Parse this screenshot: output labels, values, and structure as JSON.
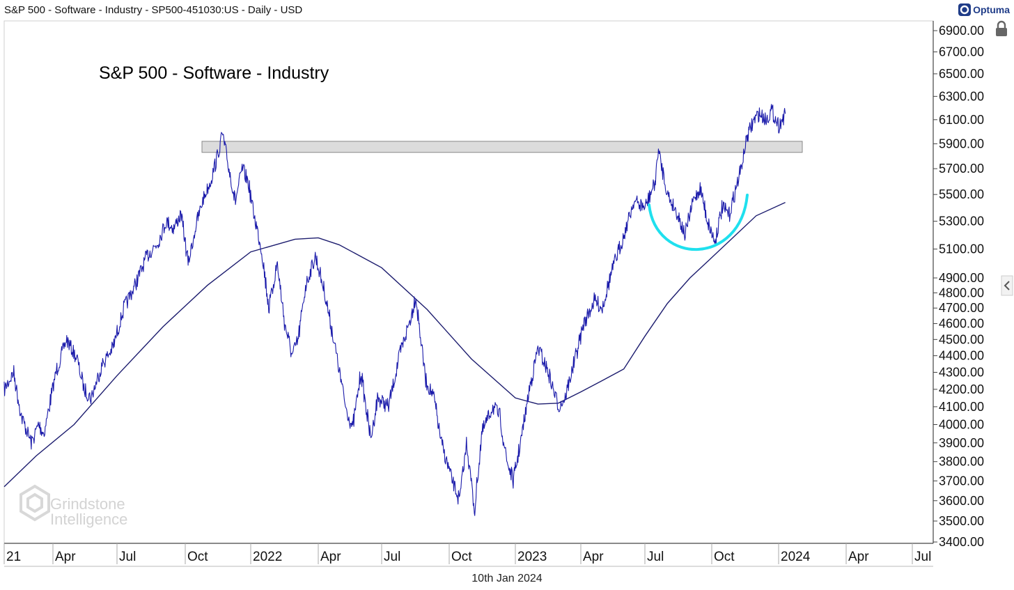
{
  "header": {
    "title": "S&P 500 - Software - Industry - SP500-451030:US - Daily - USD",
    "logo_text": "Optuma"
  },
  "footer": {
    "date": "10th Jan 2024"
  },
  "watermark": {
    "line1": "Grindstone",
    "line2": "Intelligence"
  },
  "colors": {
    "price": "#1a1aaa",
    "moving_average": "#1c1c6e",
    "resistance_band": "#dcdcdc",
    "resistance_border": "#888888",
    "arc": "#1fe0ee",
    "axis": "#444444"
  },
  "chart_data": {
    "type": "line",
    "title": "S&P 500 - Software - Industry",
    "x_axis": {
      "tick_labels": [
        "21",
        "Apr",
        "Jul",
        "Oct",
        "2022",
        "Apr",
        "Jul",
        "Oct",
        "2023",
        "Apr",
        "Jul",
        "Oct",
        "2024",
        "Apr",
        "Jul"
      ],
      "tick_dates": [
        "2021-01-01",
        "2021-04-01",
        "2021-07-01",
        "2021-10-01",
        "2022-01-01",
        "2022-04-01",
        "2022-07-01",
        "2022-10-01",
        "2023-01-01",
        "2023-04-01",
        "2023-07-01",
        "2023-10-01",
        "2024-01-01",
        "2024-04-01",
        "2024-07-01"
      ]
    },
    "y_axis": {
      "scale": "log",
      "range": [
        3400,
        7000
      ],
      "tick_labels": [
        "6900.00",
        "6700.00",
        "6500.00",
        "6300.00",
        "6100.00",
        "5900.00",
        "5700.00",
        "5500.00",
        "5300.00",
        "5100.00",
        "4900.00",
        "4800.00",
        "4700.00",
        "4600.00",
        "4500.00",
        "4400.00",
        "4300.00",
        "4200.00",
        "4100.00",
        "4000.00",
        "3900.00",
        "3800.00",
        "3700.00",
        "3600.00",
        "3500.00",
        "3400.00"
      ],
      "tick_values": [
        6900,
        6700,
        6500,
        6300,
        6100,
        5900,
        5700,
        5500,
        5300,
        5100,
        4900,
        4800,
        4700,
        4600,
        4500,
        4400,
        4300,
        4200,
        4100,
        4000,
        3900,
        3800,
        3700,
        3600,
        3500,
        3400
      ]
    },
    "grid": false,
    "series": [
      {
        "values_kind": "price",
        "points": [
          [
            "2021-01-01",
            4200
          ],
          [
            "2021-01-18",
            4300
          ],
          [
            "2021-02-01",
            4050
          ],
          [
            "2021-02-20",
            3900
          ],
          [
            "2021-03-05",
            4000
          ],
          [
            "2021-03-15",
            3950
          ],
          [
            "2021-04-05",
            4300
          ],
          [
            "2021-04-20",
            4500
          ],
          [
            "2021-05-05",
            4380
          ],
          [
            "2021-05-15",
            4200
          ],
          [
            "2021-05-25",
            4150
          ],
          [
            "2021-06-10",
            4350
          ],
          [
            "2021-06-25",
            4450
          ],
          [
            "2021-07-10",
            4700
          ],
          [
            "2021-07-25",
            4850
          ],
          [
            "2021-08-10",
            5050
          ],
          [
            "2021-08-25",
            5150
          ],
          [
            "2021-09-05",
            5300
          ],
          [
            "2021-09-15",
            5250
          ],
          [
            "2021-09-25",
            5350
          ],
          [
            "2021-10-05",
            5000
          ],
          [
            "2021-10-15",
            5250
          ],
          [
            "2021-10-25",
            5450
          ],
          [
            "2021-11-05",
            5600
          ],
          [
            "2021-11-15",
            5800
          ],
          [
            "2021-11-22",
            5980
          ],
          [
            "2021-12-01",
            5700
          ],
          [
            "2021-12-10",
            5450
          ],
          [
            "2021-12-20",
            5700
          ],
          [
            "2021-12-28",
            5600
          ],
          [
            "2022-01-05",
            5350
          ],
          [
            "2022-01-15",
            5100
          ],
          [
            "2022-01-25",
            4700
          ],
          [
            "2022-02-05",
            5000
          ],
          [
            "2022-02-15",
            4600
          ],
          [
            "2022-02-25",
            4400
          ],
          [
            "2022-03-05",
            4500
          ],
          [
            "2022-03-15",
            4850
          ],
          [
            "2022-03-28",
            5050
          ],
          [
            "2022-04-10",
            4800
          ],
          [
            "2022-04-25",
            4450
          ],
          [
            "2022-05-10",
            4100
          ],
          [
            "2022-05-20",
            3980
          ],
          [
            "2022-06-01",
            4300
          ],
          [
            "2022-06-15",
            3920
          ],
          [
            "2022-06-25",
            4150
          ],
          [
            "2022-07-10",
            4100
          ],
          [
            "2022-07-25",
            4400
          ],
          [
            "2022-08-10",
            4650
          ],
          [
            "2022-08-16",
            4780
          ],
          [
            "2022-08-30",
            4250
          ],
          [
            "2022-09-10",
            4150
          ],
          [
            "2022-09-20",
            3900
          ],
          [
            "2022-10-05",
            3700
          ],
          [
            "2022-10-15",
            3600
          ],
          [
            "2022-10-25",
            3900
          ],
          [
            "2022-11-05",
            3550
          ],
          [
            "2022-11-15",
            3950
          ],
          [
            "2022-11-30",
            4100
          ],
          [
            "2022-12-10",
            4050
          ],
          [
            "2022-12-20",
            3800
          ],
          [
            "2022-12-29",
            3700
          ],
          [
            "2023-01-10",
            3950
          ],
          [
            "2023-01-20",
            4200
          ],
          [
            "2023-02-01",
            4450
          ],
          [
            "2023-02-15",
            4300
          ],
          [
            "2023-03-01",
            4100
          ],
          [
            "2023-03-10",
            4150
          ],
          [
            "2023-03-25",
            4400
          ],
          [
            "2023-04-05",
            4600
          ],
          [
            "2023-04-20",
            4750
          ],
          [
            "2023-05-01",
            4700
          ],
          [
            "2023-05-15",
            4950
          ],
          [
            "2023-06-01",
            5200
          ],
          [
            "2023-06-15",
            5450
          ],
          [
            "2023-07-01",
            5400
          ],
          [
            "2023-07-15",
            5600
          ],
          [
            "2023-07-19",
            5850
          ],
          [
            "2023-08-01",
            5500
          ],
          [
            "2023-08-15",
            5350
          ],
          [
            "2023-08-25",
            5200
          ],
          [
            "2023-09-05",
            5450
          ],
          [
            "2023-09-15",
            5550
          ],
          [
            "2023-09-25",
            5300
          ],
          [
            "2023-10-05",
            5150
          ],
          [
            "2023-10-15",
            5400
          ],
          [
            "2023-10-25",
            5350
          ],
          [
            "2023-11-01",
            5500
          ],
          [
            "2023-11-10",
            5700
          ],
          [
            "2023-11-18",
            5950
          ],
          [
            "2023-11-28",
            6100
          ],
          [
            "2023-12-05",
            6150
          ],
          [
            "2023-12-15",
            6100
          ],
          [
            "2023-12-22",
            6180
          ],
          [
            "2024-01-01",
            6050
          ],
          [
            "2024-01-10",
            6150
          ]
        ]
      },
      {
        "values_kind": "moving_average",
        "points": [
          [
            "2021-01-01",
            3670
          ],
          [
            "2021-03-01",
            3830
          ],
          [
            "2021-05-01",
            4000
          ],
          [
            "2021-07-01",
            4280
          ],
          [
            "2021-09-01",
            4580
          ],
          [
            "2021-11-01",
            4850
          ],
          [
            "2022-01-01",
            5080
          ],
          [
            "2022-03-01",
            5170
          ],
          [
            "2022-04-01",
            5180
          ],
          [
            "2022-05-01",
            5130
          ],
          [
            "2022-07-01",
            4970
          ],
          [
            "2022-09-01",
            4690
          ],
          [
            "2022-11-01",
            4380
          ],
          [
            "2023-01-01",
            4150
          ],
          [
            "2023-02-01",
            4115
          ],
          [
            "2023-03-01",
            4120
          ],
          [
            "2023-04-01",
            4185
          ],
          [
            "2023-05-01",
            4250
          ],
          [
            "2023-06-01",
            4320
          ],
          [
            "2023-07-01",
            4520
          ],
          [
            "2023-08-01",
            4730
          ],
          [
            "2023-09-01",
            4900
          ],
          [
            "2023-10-01",
            5040
          ],
          [
            "2023-11-01",
            5190
          ],
          [
            "2023-12-01",
            5340
          ],
          [
            "2024-01-10",
            5440
          ]
        ]
      }
    ],
    "annotations": {
      "resistance_zone": {
        "from_date": "2021-10-01",
        "to_date": "2024-01-10",
        "low": 5830,
        "high": 5920
      },
      "rounded_bottom_arc": {
        "from_date": "2023-07-01",
        "to_date": "2023-11-25",
        "bottom_value": 5050
      }
    }
  }
}
